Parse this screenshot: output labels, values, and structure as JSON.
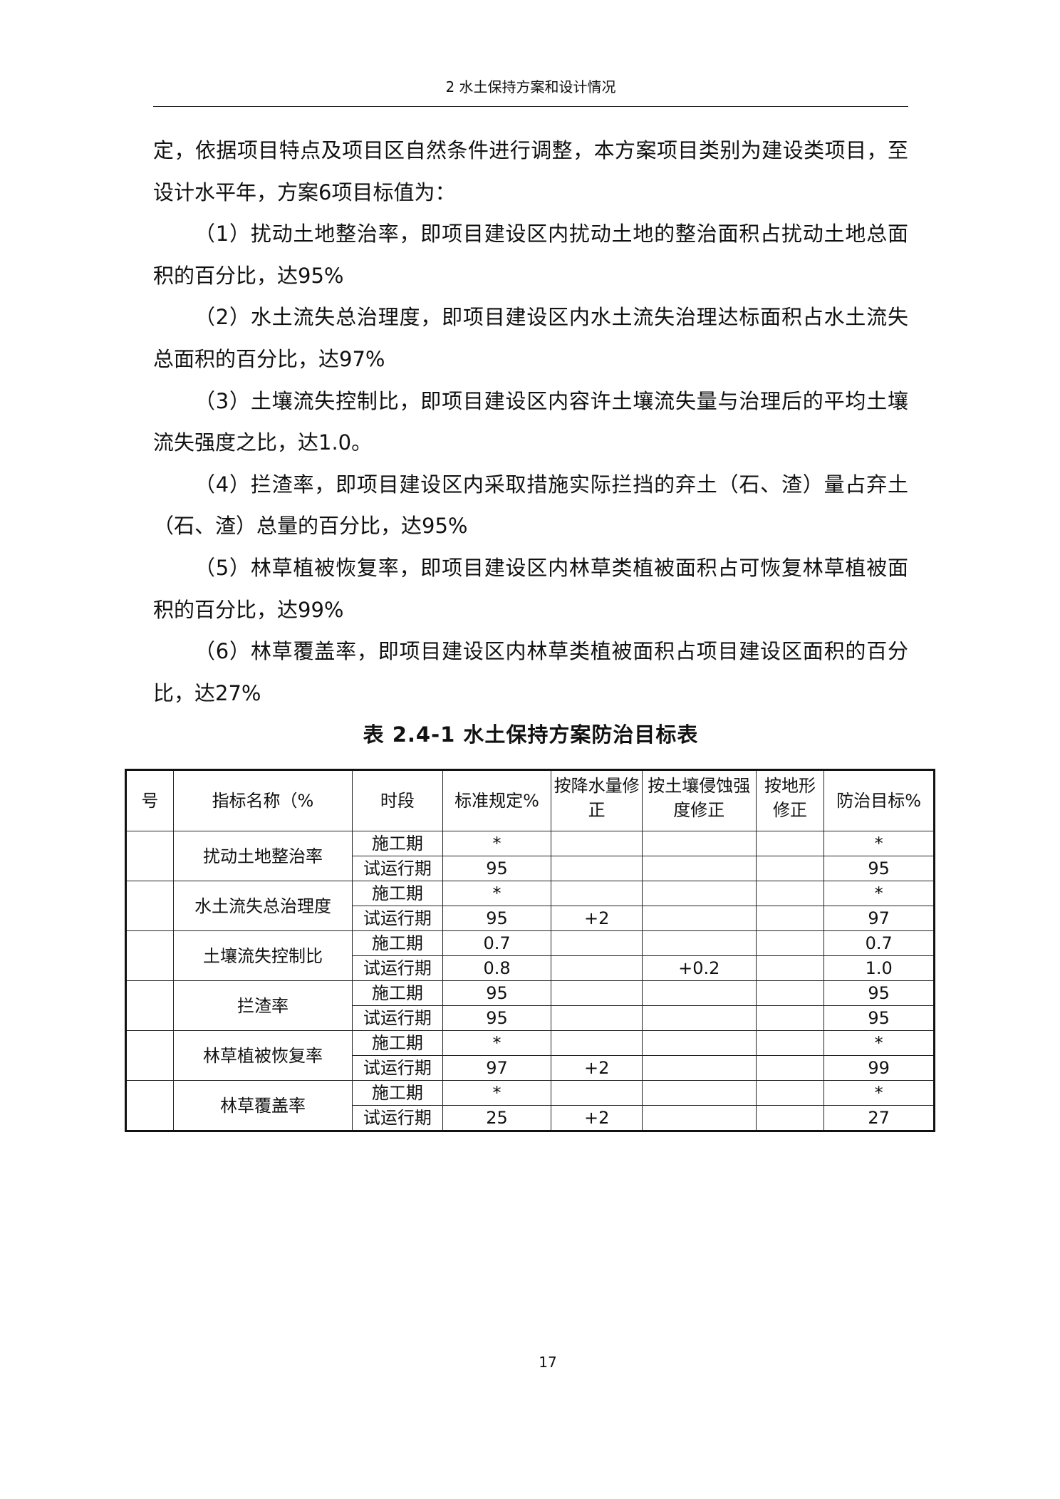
{
  "header": {
    "running_title": "2  水土保持方案和设计情况"
  },
  "paragraphs": [
    {
      "text": "定，依据项目特点及项目区自然条件进行调整，本方案项目类别为建设类项目，至设计水平年，方案6项目标值为：",
      "indent": false
    },
    {
      "text": "（1）扰动土地整治率，即项目建设区内扰动土地的整治面积占扰动土地总面积的百分比，达95%",
      "indent": true
    },
    {
      "text": "（2）水土流失总治理度，即项目建设区内水土流失治理达标面积占水土流失总面积的百分比，达97%",
      "indent": true
    },
    {
      "text": "（3）土壤流失控制比，即项目建设区内容许土壤流失量与治理后的平均土壤流失强度之比，达1.0。",
      "indent": true
    },
    {
      "text": "（4）拦渣率，即项目建设区内采取措施实际拦挡的弃土（石、渣）量占弃土（石、渣）总量的百分比，达95%",
      "indent": true
    },
    {
      "text": "（5）林草植被恢复率，即项目建设区内林草类植被面积占可恢复林草植被面积的百分比，达99%",
      "indent": true
    },
    {
      "text": "（6）林草覆盖率，即项目建设区内林草类植被面积占项目建设区面积的百分比，达27%",
      "indent": true
    }
  ],
  "table": {
    "caption": "表 2.4-1   水土保持方案防治目标表",
    "headers": [
      "号",
      "指标名称（%",
      "时段",
      "标准规定%",
      "按降水量修正",
      "按土壤侵蚀强度修正",
      "按地形修正",
      "防治目标%"
    ],
    "groups": [
      {
        "name": "扰动土地整治率",
        "rows": [
          [
            "施工期",
            "*",
            "",
            "",
            "",
            "*"
          ],
          [
            "试运行期",
            "95",
            "",
            "",
            "",
            "95"
          ]
        ]
      },
      {
        "name": "水土流失总治理度",
        "rows": [
          [
            "施工期",
            "*",
            "",
            "",
            "",
            "*"
          ],
          [
            "试运行期",
            "95",
            "+2",
            "",
            "",
            "97"
          ]
        ]
      },
      {
        "name": "土壤流失控制比",
        "rows": [
          [
            "施工期",
            "0.7",
            "",
            "",
            "",
            "0.7"
          ],
          [
            "试运行期",
            "0.8",
            "",
            "+0.2",
            "",
            "1.0"
          ]
        ]
      },
      {
        "name": "拦渣率",
        "rows": [
          [
            "施工期",
            "95",
            "",
            "",
            "",
            "95"
          ],
          [
            "试运行期",
            "95",
            "",
            "",
            "",
            "95"
          ]
        ]
      },
      {
        "name": "林草植被恢复率",
        "rows": [
          [
            "施工期",
            "*",
            "",
            "",
            "",
            "*"
          ],
          [
            "试运行期",
            "97",
            "+2",
            "",
            "",
            "99"
          ]
        ]
      },
      {
        "name": "林草覆盖率",
        "rows": [
          [
            "施工期",
            "*",
            "",
            "",
            "",
            "*"
          ],
          [
            "试运行期",
            "25",
            "+2",
            "",
            "",
            "27"
          ]
        ]
      }
    ]
  },
  "footer": {
    "page_number": "17"
  }
}
